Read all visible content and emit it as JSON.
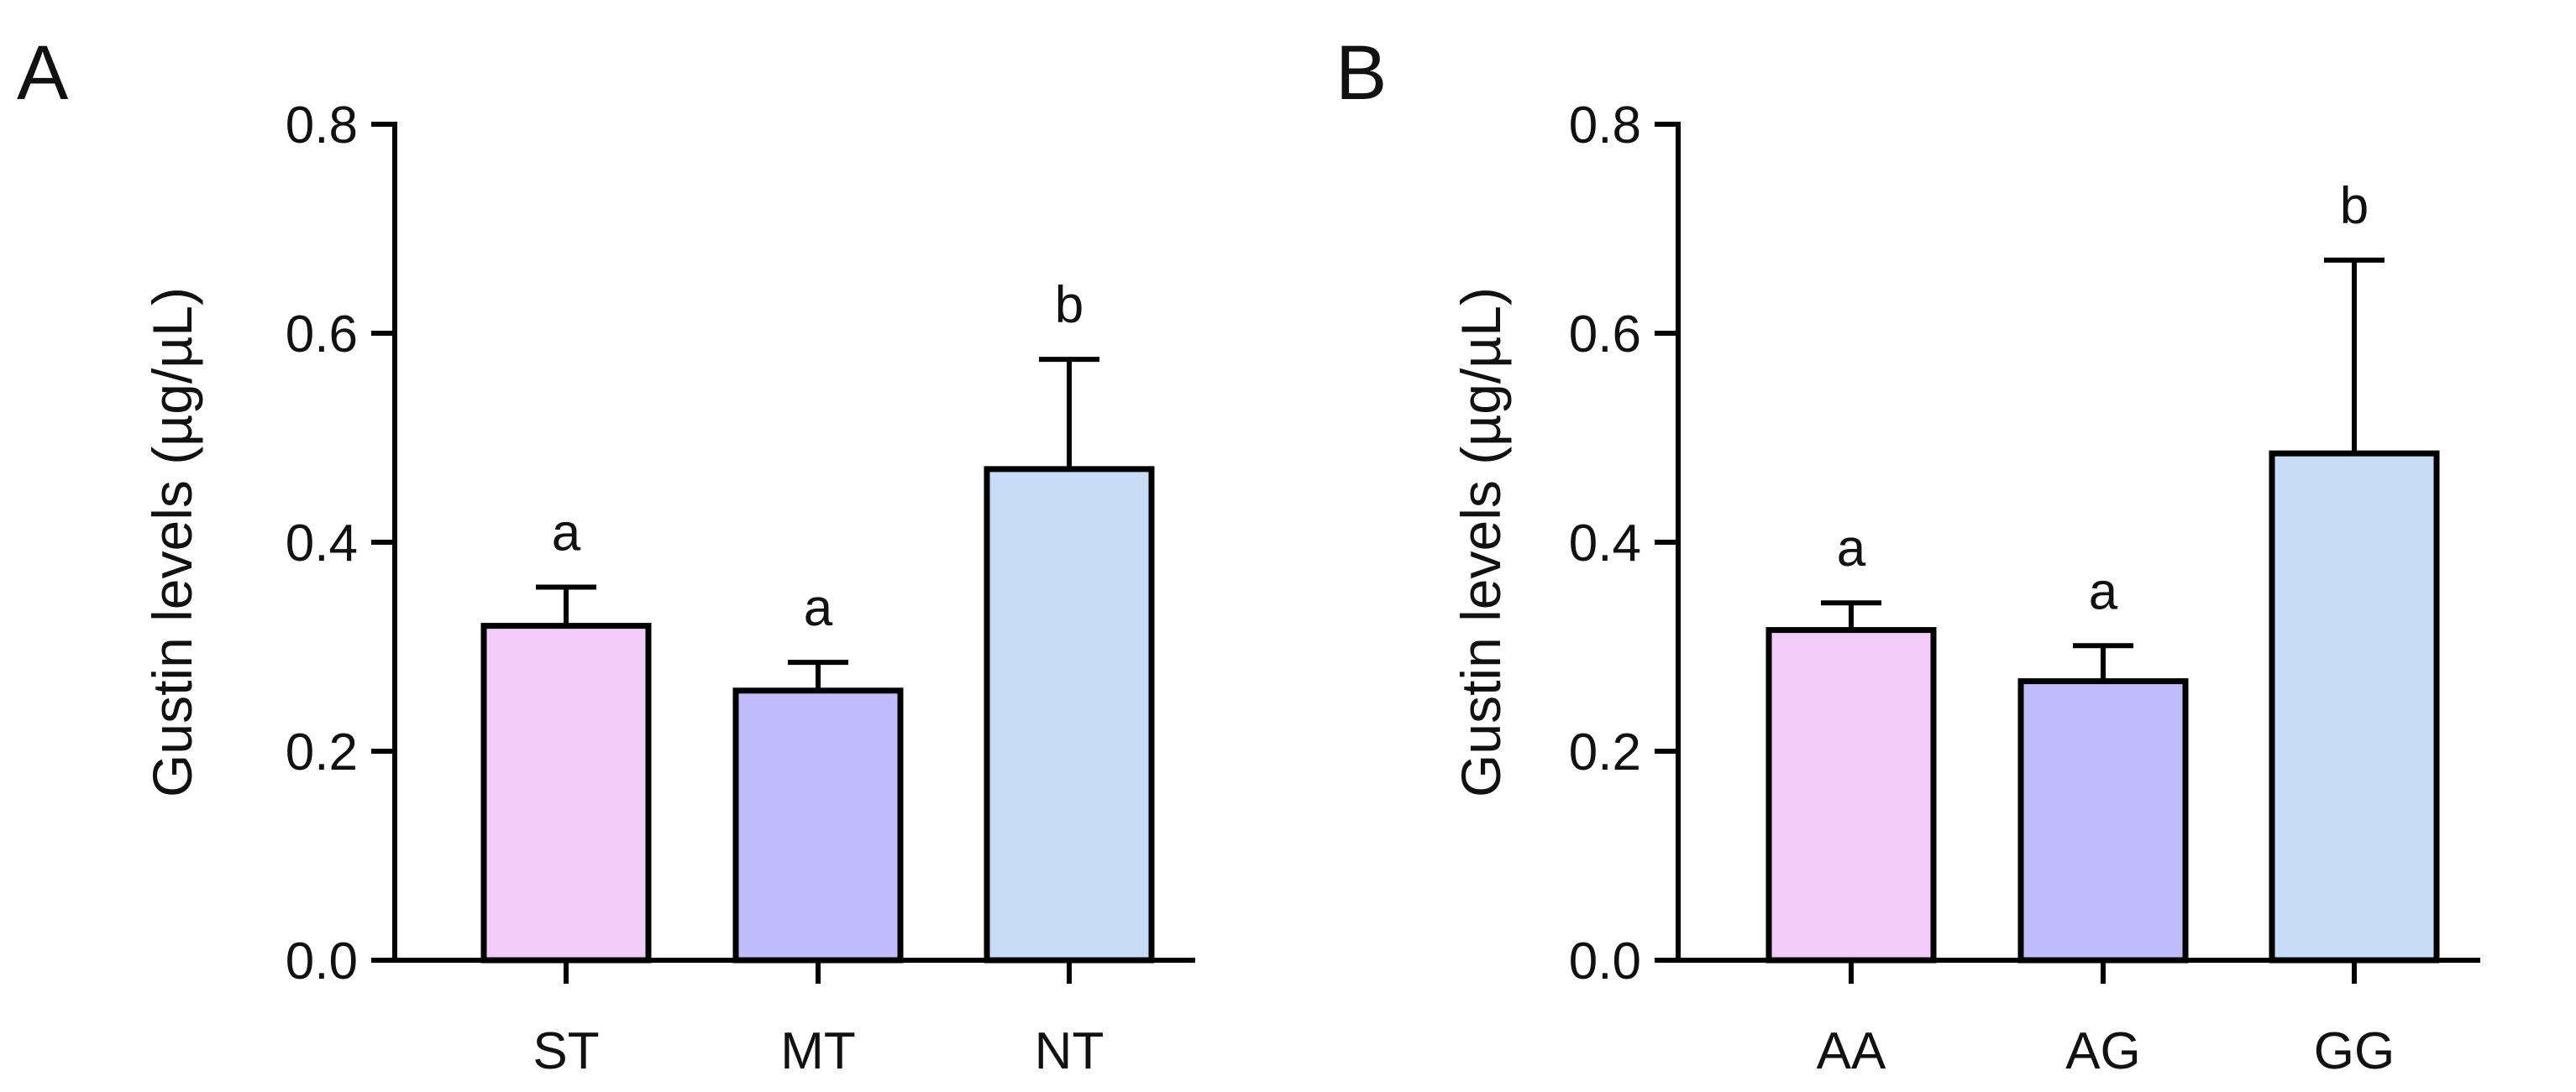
{
  "chart_data": [
    {
      "type": "bar",
      "panel": "A",
      "ylabel": "Gustin levels (µg/µL)",
      "xlabel": "",
      "ylim": [
        0,
        0.8
      ],
      "yticks": [
        "0.0",
        "0.2",
        "0.4",
        "0.6",
        "0.8"
      ],
      "categories": [
        "ST",
        "MT",
        "NT"
      ],
      "values": [
        0.32,
        0.258,
        0.47
      ],
      "errors": [
        0.037,
        0.027,
        0.105
      ],
      "significance": [
        "a",
        "a",
        "b"
      ],
      "colors": [
        "#f0ccf7",
        "#c0bdfc",
        "#c8dcf6"
      ]
    },
    {
      "type": "bar",
      "panel": "B",
      "ylabel": "Gustin levels (µg/µL)",
      "xlabel": "",
      "ylim": [
        0,
        0.8
      ],
      "yticks": [
        "0.0",
        "0.2",
        "0.4",
        "0.6",
        "0.8"
      ],
      "categories": [
        "AA",
        "AG",
        "GG"
      ],
      "values": [
        0.316,
        0.267,
        0.485
      ],
      "errors": [
        0.026,
        0.034,
        0.185
      ],
      "significance": [
        "a",
        "a",
        "b"
      ],
      "colors": [
        "#f0ccf7",
        "#c0bdfc",
        "#c8dcf6"
      ]
    }
  ]
}
